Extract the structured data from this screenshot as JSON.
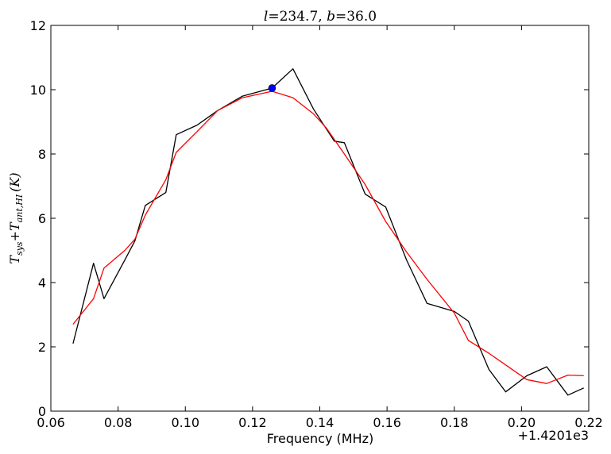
{
  "chart_data": {
    "type": "line",
    "title": {
      "l_sym": "l",
      "l_val": "234.7",
      "sep": ", ",
      "b_sym": "b",
      "b_val": "36.0"
    },
    "xlabel": "Frequency (MHz)",
    "ylabel": {
      "t": "T",
      "sys": "sys",
      "plus": "+",
      "t2": "T",
      "ant": "ant,HI",
      "unit": "(K)"
    },
    "x_offset_label": "+1.4201e3",
    "xlim": [
      0.06,
      0.22
    ],
    "ylim": [
      0,
      12
    ],
    "x_ticks": [
      0.06,
      0.08,
      0.1,
      0.12,
      0.14,
      0.16,
      0.18,
      0.2,
      0.22
    ],
    "x_tick_labels": [
      "0.06",
      "0.08",
      "0.10",
      "0.12",
      "0.14",
      "0.16",
      "0.18",
      "0.20",
      "0.22"
    ],
    "y_ticks": [
      0,
      2,
      4,
      6,
      8,
      10,
      12
    ],
    "y_tick_labels": [
      "0",
      "2",
      "4",
      "6",
      "8",
      "10",
      "12"
    ],
    "grid": false,
    "series": [
      {
        "color": "#000000",
        "x": [
          0.0666,
          0.0727,
          0.0758,
          0.082,
          0.085,
          0.0881,
          0.0942,
          0.0973,
          0.1035,
          0.1096,
          0.117,
          0.1258,
          0.132,
          0.1381,
          0.1443,
          0.1473,
          0.1535,
          0.1596,
          0.1658,
          0.1719,
          0.18,
          0.1842,
          0.1903,
          0.1953,
          0.2016,
          0.2075,
          0.2138,
          0.2185
        ],
        "y": [
          2.1,
          4.6,
          3.5,
          4.7,
          5.3,
          6.4,
          6.8,
          8.6,
          8.9,
          9.35,
          9.8,
          10.05,
          10.65,
          9.4,
          8.4,
          8.35,
          6.75,
          6.35,
          4.7,
          3.35,
          3.1,
          2.8,
          1.3,
          0.6,
          1.1,
          1.38,
          0.5,
          0.72
        ]
      },
      {
        "color": "#ff0000",
        "x": [
          0.0666,
          0.0727,
          0.0758,
          0.082,
          0.085,
          0.0881,
          0.0942,
          0.0973,
          0.1035,
          0.1096,
          0.117,
          0.1258,
          0.132,
          0.1381,
          0.142,
          0.1473,
          0.1535,
          0.1596,
          0.1658,
          0.1719,
          0.18,
          0.1842,
          0.1903,
          0.2016,
          0.2075,
          0.2138,
          0.2185
        ],
        "y": [
          2.7,
          3.5,
          4.45,
          5.0,
          5.35,
          6.1,
          7.2,
          8.05,
          8.7,
          9.35,
          9.75,
          9.95,
          9.75,
          9.25,
          8.8,
          8.0,
          7.05,
          5.9,
          4.95,
          4.1,
          3.05,
          2.2,
          1.8,
          0.98,
          0.86,
          1.12,
          1.1
        ]
      }
    ],
    "marker": {
      "x": 0.1258,
      "y": 10.05,
      "color": "#0000ff"
    }
  }
}
